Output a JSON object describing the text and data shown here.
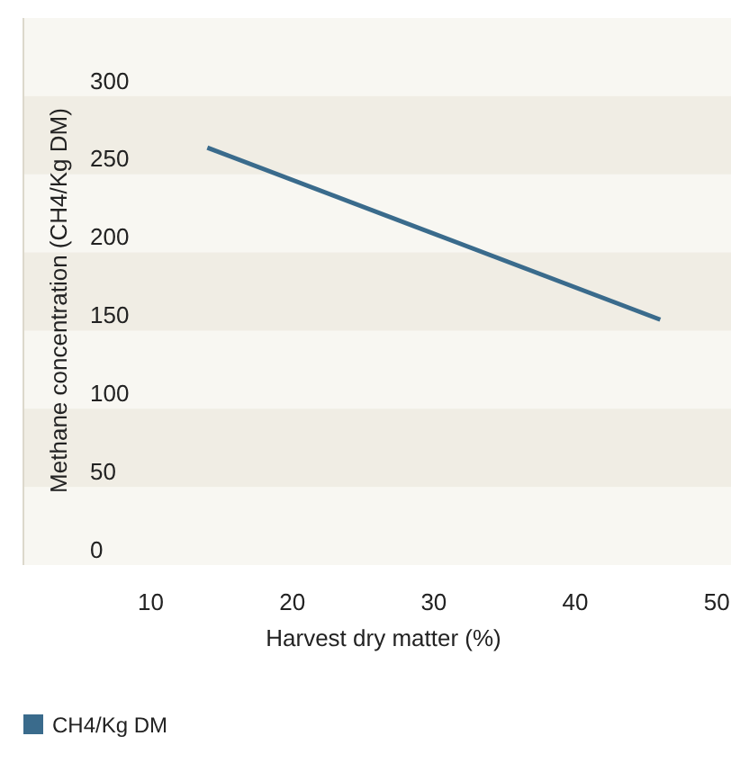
{
  "chart_data": {
    "type": "line",
    "xlabel": "Harvest dry matter (%)",
    "ylabel": "Methane concentration (CH4/Kg DM)",
    "x": [
      14,
      46
    ],
    "series": [
      {
        "name": "CH4/Kg DM",
        "color": "#3a6b8c",
        "values": [
          257,
          147
        ]
      }
    ],
    "xlim": [
      1,
      51
    ],
    "xticks": [
      10,
      20,
      30,
      40,
      50
    ],
    "ylim": [
      -10,
      340
    ],
    "yticks": [
      0,
      50,
      100,
      150,
      200,
      250,
      300
    ],
    "bands": [
      {
        "axis": "y",
        "from": 40,
        "to": 90,
        "color": "#f0ede4"
      },
      {
        "axis": "y",
        "from": 140,
        "to": 190,
        "color": "#f0ede4"
      },
      {
        "axis": "y",
        "from": 240,
        "to": 290,
        "color": "#f0ede4"
      }
    ],
    "legend": "bottom",
    "marker": "none",
    "line_style": "solid"
  }
}
